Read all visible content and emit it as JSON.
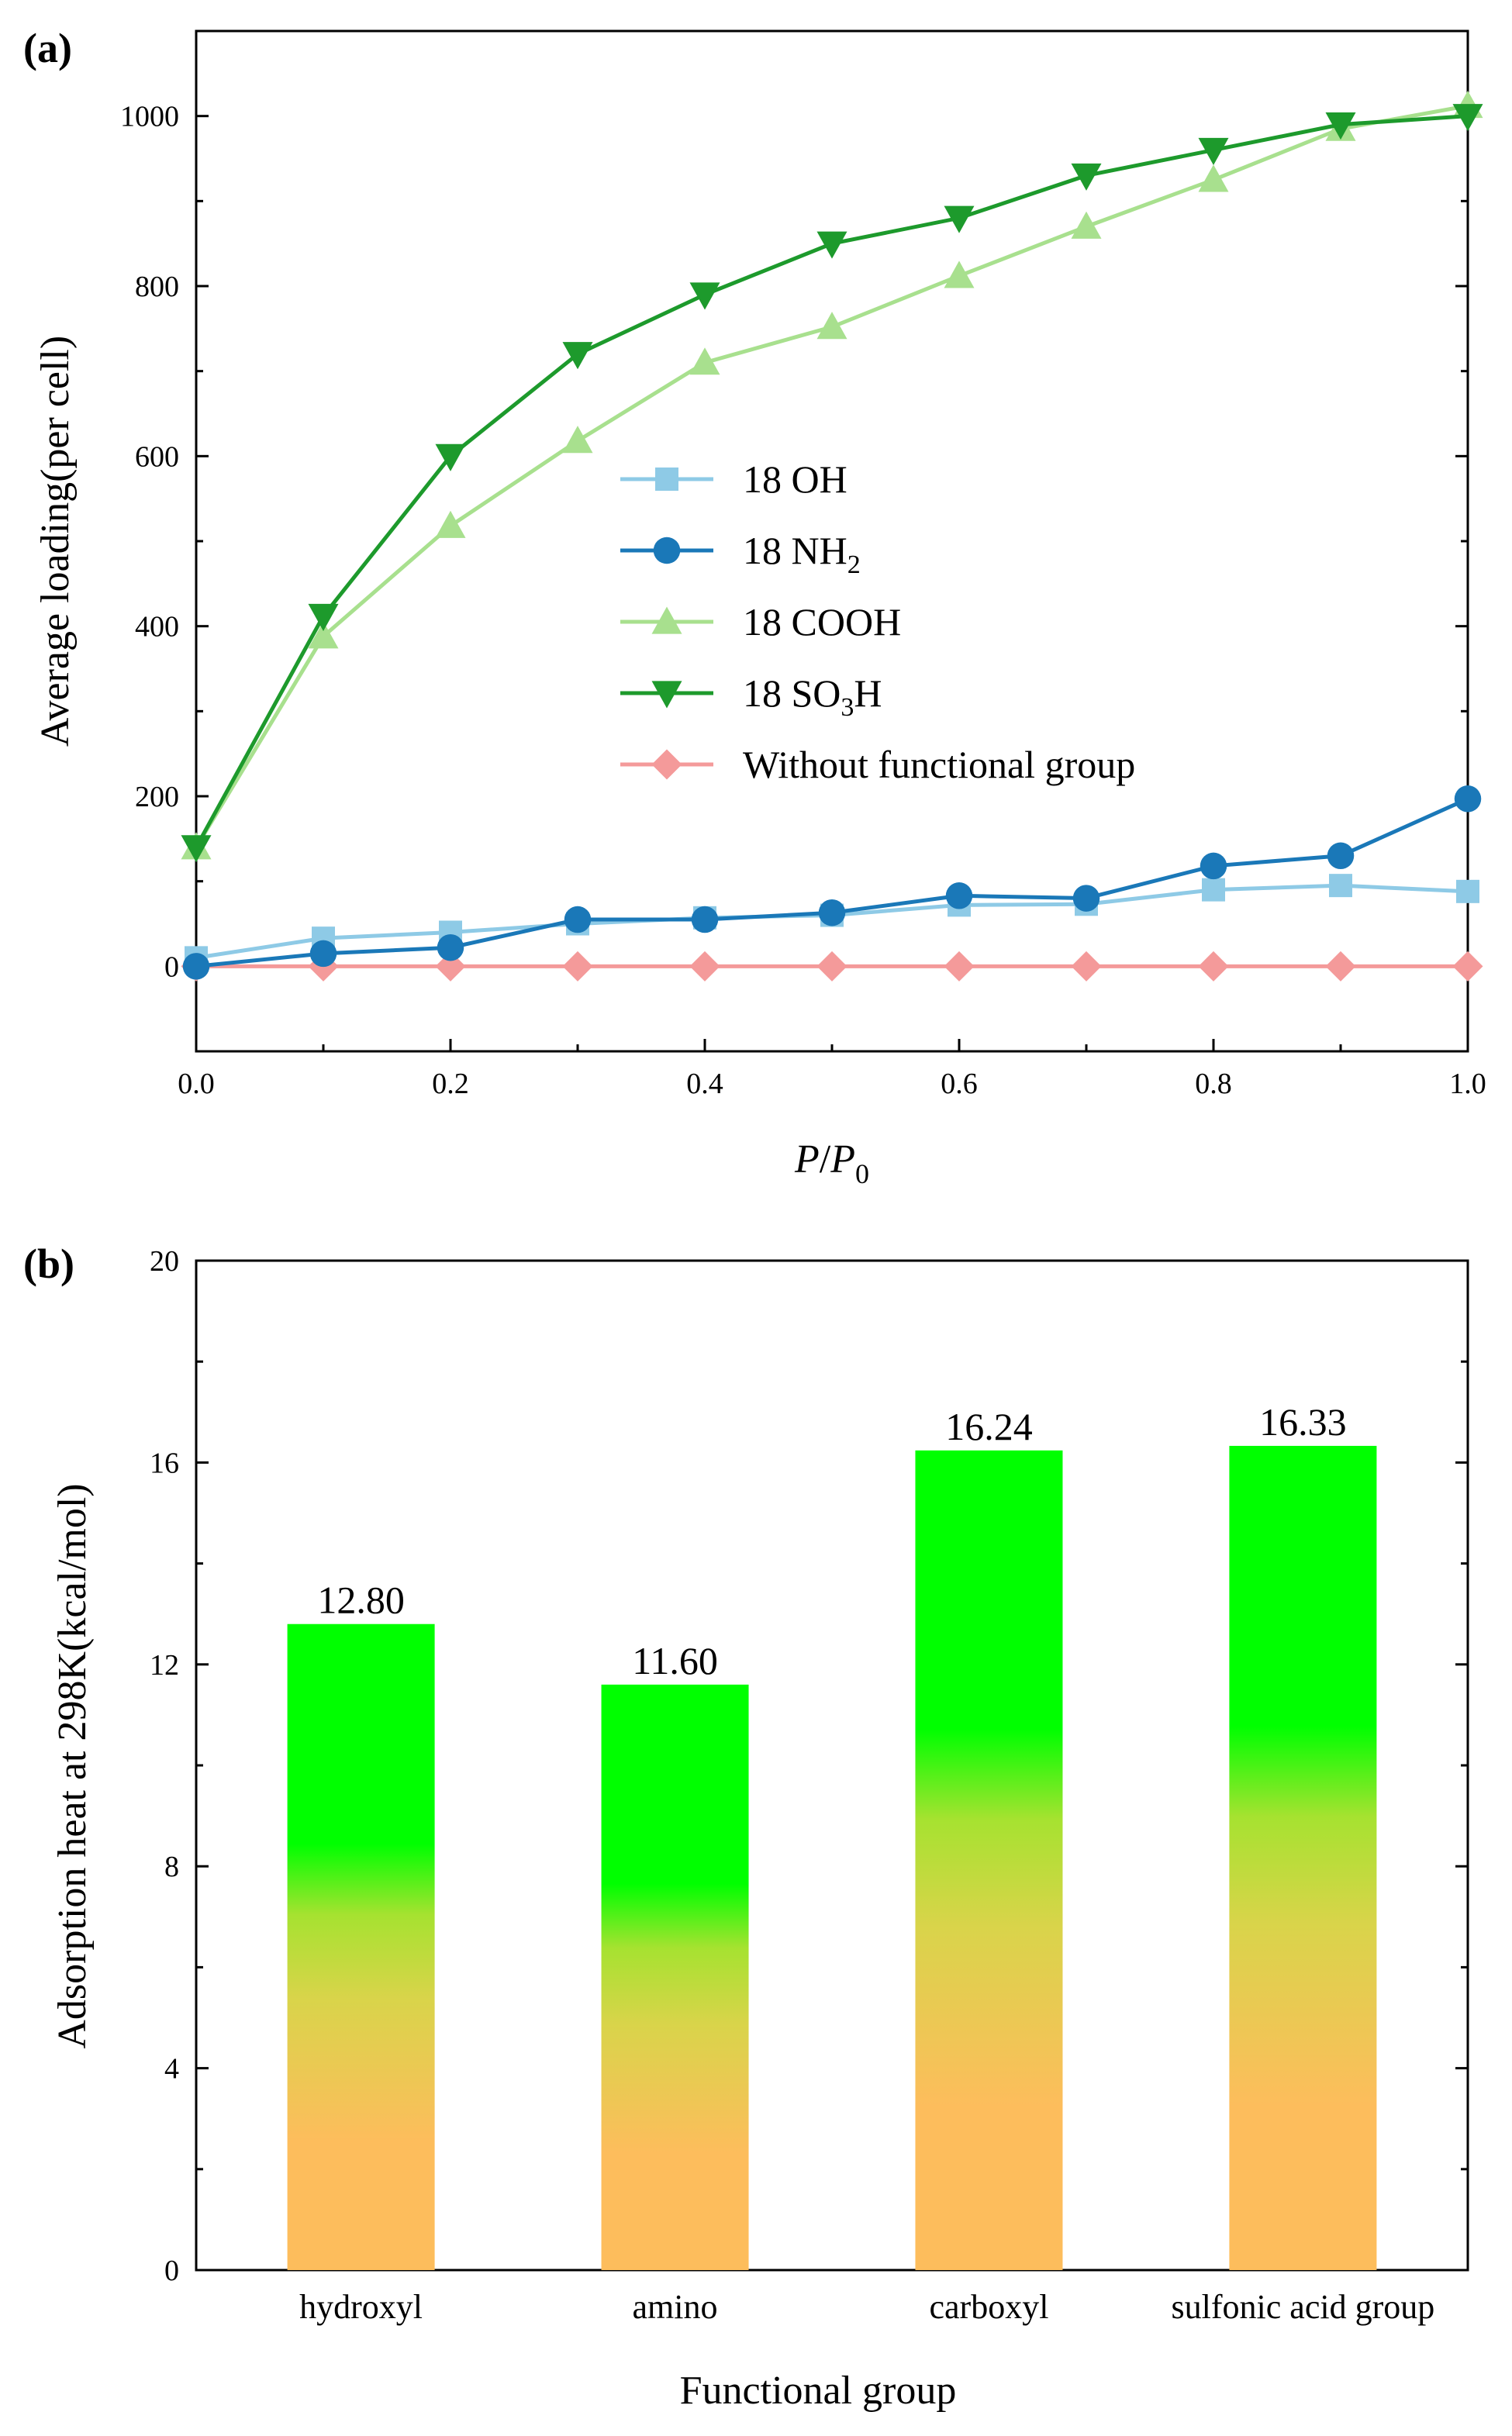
{
  "chart_data": [
    {
      "panel_label": "(a)",
      "type": "line",
      "xlabel_main": "P",
      "xlabel_sep": "/",
      "xlabel_base": "P",
      "xlabel_sub": "0",
      "ylabel": "Average loading(per cell)",
      "xlim": [
        0.0,
        1.0
      ],
      "ylim": [
        -100,
        1100
      ],
      "xticks": [
        0.0,
        0.2,
        0.4,
        0.6,
        0.8,
        1.0
      ],
      "xtick_labels": [
        "0.0",
        "0.2",
        "0.4",
        "0.6",
        "0.8",
        "1.0"
      ],
      "yticks": [
        0,
        200,
        400,
        600,
        800,
        1000
      ],
      "ytick_labels": [
        "0",
        "200",
        "400",
        "600",
        "800",
        "1000"
      ],
      "legend_position": "center",
      "x": [
        0.0,
        0.1,
        0.2,
        0.3,
        0.4,
        0.5,
        0.6,
        0.7,
        0.8,
        0.9,
        1.0
      ],
      "series": [
        {
          "name": "18 OH",
          "legend_prefix": "18 OH",
          "legend_sub": "",
          "legend_suffix": "",
          "color": "#8ecae6",
          "marker": "square",
          "values": [
            10,
            33,
            40,
            50,
            57,
            60,
            72,
            73,
            90,
            95,
            88
          ]
        },
        {
          "name": "18 NH2",
          "legend_prefix": "18 NH",
          "legend_sub": "2",
          "legend_suffix": "",
          "color": "#1a78b8",
          "marker": "circle",
          "values": [
            0,
            15,
            22,
            55,
            55,
            63,
            83,
            80,
            118,
            130,
            197
          ]
        },
        {
          "name": "18 COOH",
          "legend_prefix": "18 COOH",
          "legend_sub": "",
          "legend_suffix": "",
          "color": "#a8e08e",
          "marker": "triangle-up",
          "values": [
            140,
            388,
            518,
            618,
            710,
            752,
            812,
            870,
            925,
            985,
            1012
          ]
        },
        {
          "name": "18 SO3H",
          "legend_prefix": "18 SO",
          "legend_sub": "3",
          "legend_suffix": "H",
          "color": "#1d9a2c",
          "marker": "triangle-down",
          "values": [
            140,
            412,
            600,
            720,
            790,
            850,
            880,
            930,
            960,
            990,
            1000
          ]
        },
        {
          "name": "Without functional group",
          "legend_prefix": "Without functional group",
          "legend_sub": "",
          "legend_suffix": "",
          "color": "#f49a9a",
          "marker": "diamond",
          "values": [
            0,
            0,
            0,
            0,
            0,
            0,
            0,
            0,
            0,
            0,
            0
          ]
        }
      ]
    },
    {
      "panel_label": "(b)",
      "type": "bar",
      "xlabel": "Functional group",
      "ylabel": "Adsorption heat at 298K(kcal/mol)",
      "ylim": [
        0,
        20
      ],
      "yticks": [
        0,
        4,
        8,
        12,
        16,
        20
      ],
      "ytick_labels": [
        "0",
        "4",
        "8",
        "12",
        "16",
        "20"
      ],
      "categories": [
        "hydroxyl",
        "amino",
        "carboxyl",
        "sulfonic acid group"
      ],
      "values": [
        12.8,
        11.6,
        16.24,
        16.33
      ],
      "data_labels": [
        "12.80",
        "11.60",
        "16.24",
        "16.33"
      ],
      "gradient_colors": {
        "top": "#00ff00",
        "bottom": "#fdbd5c"
      }
    }
  ]
}
